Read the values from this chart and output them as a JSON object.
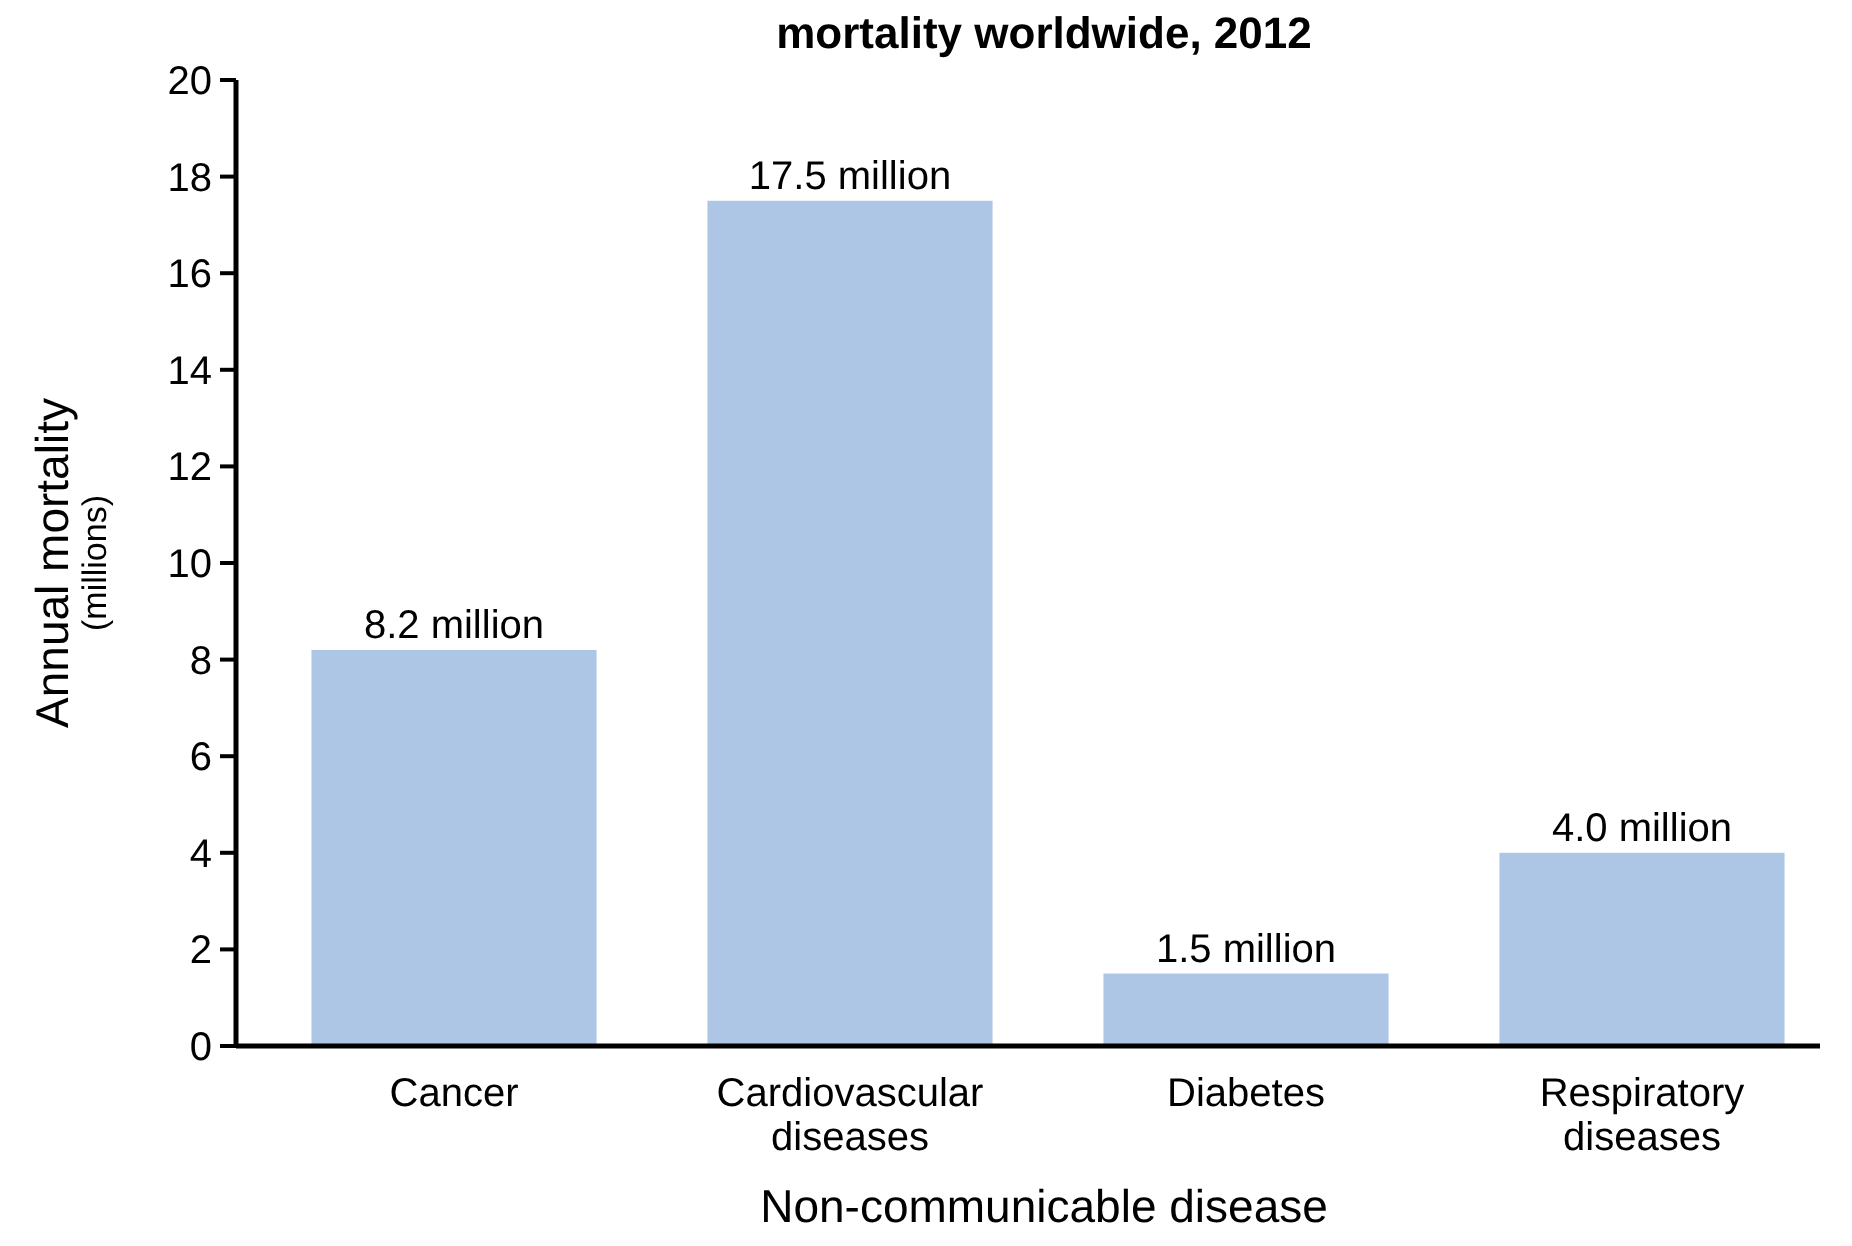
{
  "chart_data": {
    "type": "bar",
    "title": "mortality worldwide, 2012",
    "xlabel": "Non-communicable disease",
    "ylabel": "Annual mortality\n(millions)",
    "categories": [
      "Cancer",
      "Cardiovascular diseases",
      "Diabetes",
      "Respiratory diseases"
    ],
    "values": [
      8.2,
      17.5,
      1.5,
      4.0
    ],
    "value_labels": [
      "8.2 million",
      "17.5 million",
      "1.5 million",
      "4.0 million"
    ],
    "color": "#aec6e6",
    "ylim": [
      0,
      20
    ],
    "yticks": [
      0,
      2,
      4,
      6,
      8,
      10,
      12,
      14,
      16,
      18,
      20
    ],
    "grid": false
  }
}
